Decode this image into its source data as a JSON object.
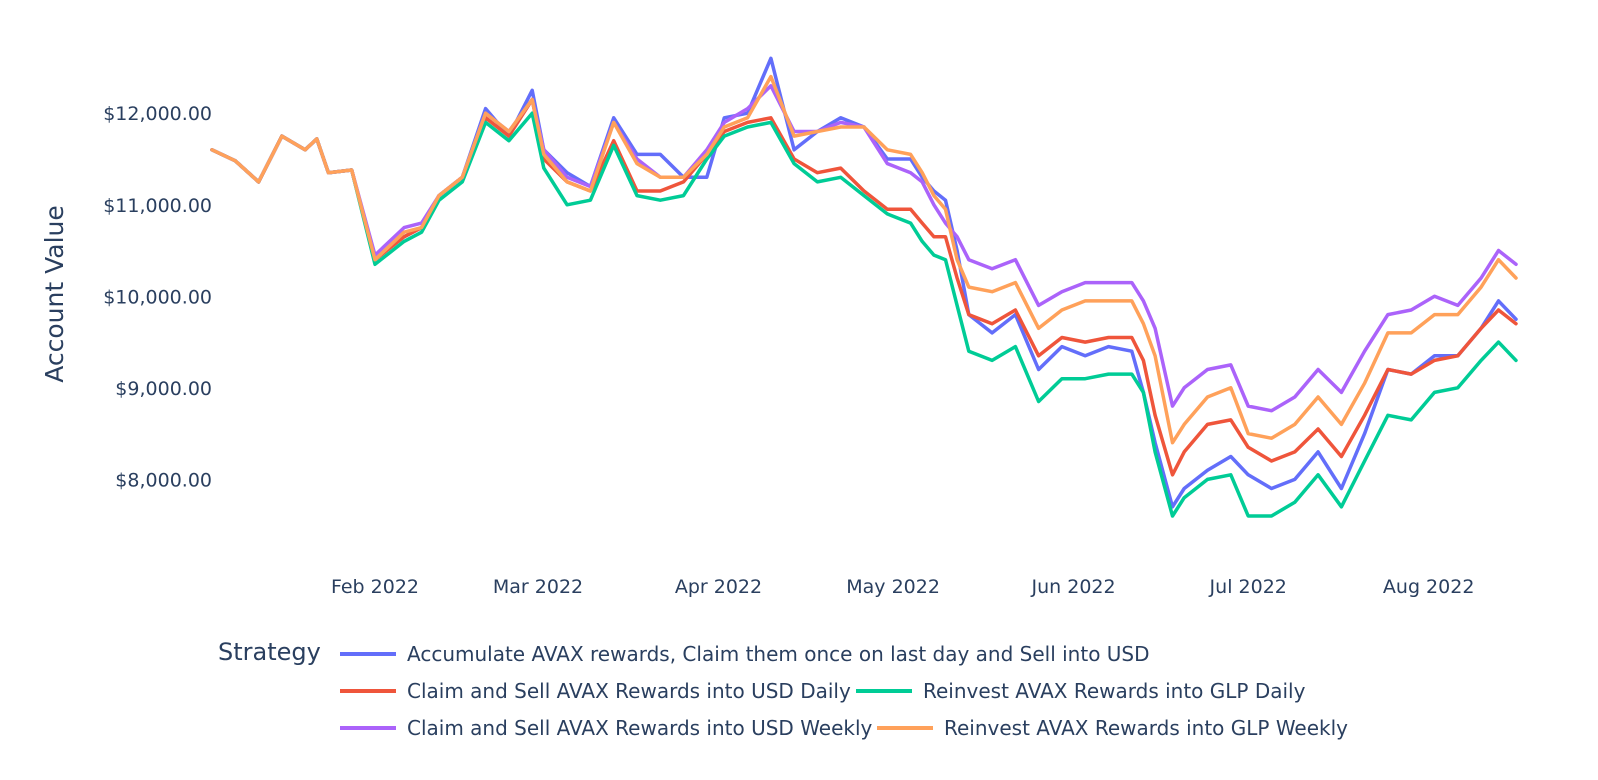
{
  "chart_data": {
    "type": "line",
    "ylabel": "Account Value",
    "ylim": [
      7250,
      12800
    ],
    "y_ticks": [
      {
        "value": 8000,
        "label": "$8,000.00"
      },
      {
        "value": 9000,
        "label": "$9,000.00"
      },
      {
        "value": 10000,
        "label": "$10,000.00"
      },
      {
        "value": 11000,
        "label": "$11,000.00"
      },
      {
        "value": 12000,
        "label": "$12,000.00"
      }
    ],
    "x_range": [
      "2022-01-04",
      "2022-08-16"
    ],
    "x_ticks": [
      {
        "value": "2022-02-01",
        "label": "Feb 2022"
      },
      {
        "value": "2022-03-01",
        "label": "Mar 2022"
      },
      {
        "value": "2022-04-01",
        "label": "Apr 2022"
      },
      {
        "value": "2022-05-01",
        "label": "May 2022"
      },
      {
        "value": "2022-06-01",
        "label": "Jun 2022"
      },
      {
        "value": "2022-07-01",
        "label": "Jul 2022"
      },
      {
        "value": "2022-08-01",
        "label": "Aug 2022"
      }
    ],
    "grid": false,
    "legend": {
      "title": "Strategy",
      "placement": "bottom"
    },
    "x": [
      "2022-01-04",
      "2022-01-08",
      "2022-01-12",
      "2022-01-16",
      "2022-01-20",
      "2022-01-22",
      "2022-01-24",
      "2022-01-28",
      "2022-02-01",
      "2022-02-06",
      "2022-02-09",
      "2022-02-12",
      "2022-02-16",
      "2022-02-20",
      "2022-02-24",
      "2022-02-28",
      "2022-03-02",
      "2022-03-06",
      "2022-03-10",
      "2022-03-14",
      "2022-03-18",
      "2022-03-22",
      "2022-03-26",
      "2022-03-30",
      "2022-04-02",
      "2022-04-06",
      "2022-04-10",
      "2022-04-14",
      "2022-04-18",
      "2022-04-22",
      "2022-04-26",
      "2022-04-30",
      "2022-05-04",
      "2022-05-06",
      "2022-05-08",
      "2022-05-10",
      "2022-05-12",
      "2022-05-14",
      "2022-05-18",
      "2022-05-22",
      "2022-05-26",
      "2022-05-30",
      "2022-06-03",
      "2022-06-07",
      "2022-06-11",
      "2022-06-13",
      "2022-06-15",
      "2022-06-18",
      "2022-06-20",
      "2022-06-24",
      "2022-06-28",
      "2022-07-01",
      "2022-07-05",
      "2022-07-09",
      "2022-07-13",
      "2022-07-17",
      "2022-07-21",
      "2022-07-25",
      "2022-07-29",
      "2022-08-02",
      "2022-08-06",
      "2022-08-10",
      "2022-08-13",
      "2022-08-16"
    ],
    "series": [
      {
        "name": "Accumulate AVAX rewards, Claim them once on last day and Sell into USD",
        "color": "#636efa",
        "values": [
          11600,
          11480,
          11250,
          11750,
          11600,
          11720,
          11350,
          11380,
          10400,
          10650,
          10750,
          11100,
          11300,
          12050,
          11750,
          12250,
          11600,
          11350,
          11200,
          11950,
          11550,
          11550,
          11300,
          11300,
          11950,
          12000,
          12600,
          11600,
          11800,
          11950,
          11850,
          11500,
          11500,
          11300,
          11150,
          11050,
          10500,
          9800,
          9600,
          9800,
          9200,
          9450,
          9350,
          9450,
          9400,
          8950,
          8400,
          7700,
          7900,
          8100,
          8250,
          8050,
          7900,
          8000,
          8300,
          7900,
          8500,
          9200,
          9150,
          9350,
          9350,
          9650,
          9950,
          9750
        ]
      },
      {
        "name": "Claim and Sell AVAX Rewards into USD Daily",
        "color": "#ef553b",
        "values": [
          11600,
          11480,
          11250,
          11750,
          11600,
          11720,
          11350,
          11380,
          10400,
          10650,
          10750,
          11100,
          11300,
          11950,
          11750,
          12150,
          11500,
          11250,
          11150,
          11700,
          11150,
          11150,
          11250,
          11550,
          11800,
          11900,
          11950,
          11500,
          11350,
          11400,
          11150,
          10950,
          10950,
          10800,
          10650,
          10650,
          10200,
          9800,
          9700,
          9850,
          9350,
          9550,
          9500,
          9550,
          9550,
          9300,
          8700,
          8050,
          8300,
          8600,
          8650,
          8350,
          8200,
          8300,
          8550,
          8250,
          8700,
          9200,
          9150,
          9300,
          9350,
          9650,
          9850,
          9700
        ]
      },
      {
        "name": "Reinvest AVAX Rewards into GLP Daily",
        "color": "#00cc96",
        "values": [
          11600,
          11480,
          11250,
          11750,
          11600,
          11720,
          11350,
          11380,
          10350,
          10600,
          10700,
          11050,
          11250,
          11900,
          11700,
          12000,
          11400,
          11000,
          11050,
          11650,
          11100,
          11050,
          11100,
          11500,
          11750,
          11850,
          11900,
          11450,
          11250,
          11300,
          11100,
          10900,
          10800,
          10600,
          10450,
          10400,
          9900,
          9400,
          9300,
          9450,
          8850,
          9100,
          9100,
          9150,
          9150,
          8950,
          8300,
          7600,
          7800,
          8000,
          8050,
          7600,
          7600,
          7750,
          8050,
          7700,
          8200,
          8700,
          8650,
          8950,
          9000,
          9300,
          9500,
          9300
        ]
      },
      {
        "name": "Claim and Sell AVAX Rewards into USD Weekly",
        "color": "#ab63fa",
        "values": [
          11600,
          11480,
          11250,
          11750,
          11600,
          11720,
          11350,
          11380,
          10450,
          10750,
          10800,
          11100,
          11300,
          12000,
          11800,
          12150,
          11600,
          11300,
          11200,
          11900,
          11500,
          11300,
          11300,
          11600,
          11900,
          12050,
          12300,
          11800,
          11800,
          11900,
          11850,
          11450,
          11350,
          11250,
          11000,
          10800,
          10650,
          10400,
          10300,
          10400,
          9900,
          10050,
          10150,
          10150,
          10150,
          9950,
          9650,
          8800,
          9000,
          9200,
          9250,
          8800,
          8750,
          8900,
          9200,
          8950,
          9400,
          9800,
          9850,
          10000,
          9900,
          10200,
          10500,
          10350
        ]
      },
      {
        "name": "Reinvest AVAX Rewards into GLP Weekly",
        "color": "#ffa15a",
        "values": [
          11600,
          11480,
          11250,
          11750,
          11600,
          11720,
          11350,
          11380,
          10400,
          10700,
          10750,
          11100,
          11300,
          12000,
          11800,
          12150,
          11550,
          11250,
          11150,
          11900,
          11450,
          11300,
          11300,
          11550,
          11850,
          11950,
          12400,
          11750,
          11800,
          11850,
          11850,
          11600,
          11550,
          11350,
          11100,
          10950,
          10400,
          10100,
          10050,
          10150,
          9650,
          9850,
          9950,
          9950,
          9950,
          9700,
          9350,
          8400,
          8600,
          8900,
          9000,
          8500,
          8450,
          8600,
          8900,
          8600,
          9050,
          9600,
          9600,
          9800,
          9800,
          10100,
          10400,
          10200
        ]
      }
    ]
  }
}
